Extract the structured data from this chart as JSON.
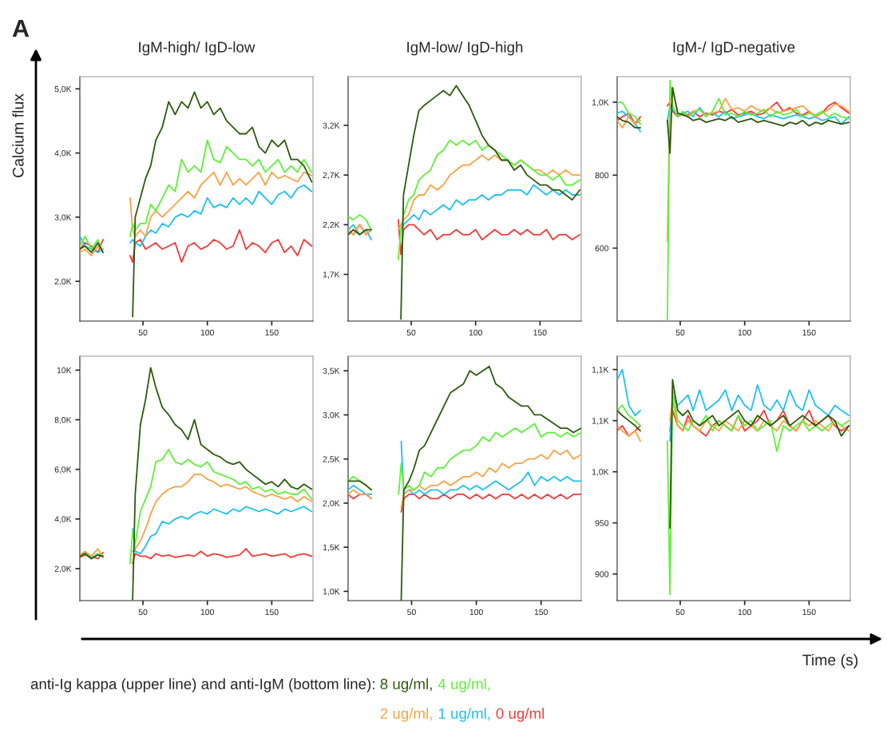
{
  "chart_data": [
    {
      "type": "line",
      "title": "IgM-high/ IgD-low",
      "ylabel": "Calcium flux",
      "legend": "bottom",
      "annotations": [
        "A",
        "anti-Ig kappa (upper line) and anti-IgM (bottom line):"
      ],
      "x": [
        1,
        5,
        10,
        15,
        19,
        30,
        40,
        42,
        44,
        48,
        52,
        56,
        60,
        65,
        70,
        75,
        80,
        85,
        90,
        95,
        100,
        105,
        110,
        115,
        120,
        125,
        130,
        135,
        140,
        145,
        150,
        155,
        160,
        165,
        170,
        175,
        181
      ],
      "xlim": [
        1,
        182
      ],
      "xticks": [
        50,
        100,
        150
      ],
      "ylim": [
        1380,
        5190
      ],
      "yticks": [
        {
          "value": 2000,
          "label": "2,0K"
        },
        {
          "value": 3000,
          "label": "3,0K"
        },
        {
          "value": 4000,
          "label": "4,0K"
        },
        {
          "value": 5000,
          "label": "5,0K"
        }
      ],
      "series": [
        {
          "name": "8 ug/ml,",
          "color": "#2d5a0c",
          "values": [
            2500,
            2550,
            2450,
            2600,
            2450,
            null,
            null,
            1450,
            3000,
            3300,
            3600,
            3800,
            4200,
            4400,
            4800,
            4600,
            4800,
            4700,
            4950,
            4700,
            4800,
            4600,
            4700,
            4500,
            4400,
            4300,
            4300,
            4400,
            4100,
            4000,
            4200,
            4100,
            4200,
            3900,
            3900,
            3800,
            3550
          ]
        },
        {
          "name": "4 ug/ml,",
          "color": "#5ef03a",
          "values": [
            2550,
            2700,
            2500,
            2650,
            2450,
            null,
            2700,
            2900,
            2800,
            2900,
            2900,
            3200,
            3100,
            3300,
            3500,
            3400,
            3900,
            3700,
            3800,
            3700,
            4200,
            3900,
            3850,
            4100,
            4000,
            3900,
            3900,
            3800,
            3900,
            3700,
            3800,
            3900,
            3700,
            3800,
            3700,
            3900,
            3700
          ]
        },
        {
          "name": "2 ug/ml,",
          "color": "#f8a345",
          "values": [
            2450,
            2500,
            2400,
            2550,
            2500,
            null,
            3300,
            2800,
            2700,
            2800,
            2700,
            3000,
            3100,
            3000,
            3100,
            3200,
            3300,
            3400,
            3300,
            3500,
            3600,
            3700,
            3500,
            3700,
            3500,
            3600,
            3500,
            3600,
            3700,
            3500,
            3700,
            3600,
            3650,
            3600,
            3550,
            3700,
            3650
          ]
        },
        {
          "name": "1 ug/ml,",
          "color": "#1ec0f2",
          "values": [
            2700,
            2550,
            2500,
            2450,
            2500,
            null,
            2600,
            2650,
            2600,
            2550,
            2700,
            2800,
            2750,
            2900,
            2850,
            3000,
            3050,
            3000,
            3100,
            3050,
            3300,
            3150,
            3200,
            3150,
            3300,
            3200,
            3300,
            3200,
            3400,
            3300,
            3200,
            3350,
            3400,
            3300,
            3450,
            3500,
            3400
          ]
        },
        {
          "name": "0 ug/ml",
          "color": "#f23a3a",
          "values": [
            2500,
            2600,
            2550,
            2450,
            2650,
            null,
            2400,
            2300,
            2600,
            2650,
            2500,
            2550,
            2600,
            2500,
            2550,
            2600,
            2300,
            2550,
            2600,
            2500,
            2550,
            2650,
            2600,
            2500,
            2550,
            2800,
            2500,
            2600,
            2550,
            2450,
            2600,
            2650,
            2450,
            2550,
            2400,
            2650,
            2550
          ]
        }
      ]
    },
    {
      "type": "line",
      "title": "IgM-low/ IgD-high",
      "x": [
        1,
        5,
        10,
        15,
        19,
        30,
        40,
        42,
        44,
        48,
        52,
        56,
        60,
        65,
        70,
        75,
        80,
        85,
        90,
        95,
        100,
        105,
        110,
        115,
        120,
        125,
        130,
        135,
        140,
        145,
        150,
        155,
        160,
        165,
        170,
        175,
        181
      ],
      "xlim": [
        1,
        182
      ],
      "xticks": [
        50,
        100,
        150
      ],
      "ylim": [
        1230,
        3690
      ],
      "yticks": [
        {
          "value": 1700,
          "label": "1,7K"
        },
        {
          "value": 2200,
          "label": "2,2K"
        },
        {
          "value": 2700,
          "label": "2,7K"
        },
        {
          "value": 3200,
          "label": "3,2K"
        }
      ],
      "series": [
        {
          "color": "#2d5a0c",
          "values": [
            2100,
            2150,
            2100,
            2150,
            2150,
            null,
            null,
            1250,
            2500,
            2800,
            3100,
            3350,
            3400,
            3450,
            3500,
            3550,
            3500,
            3600,
            3500,
            3400,
            3250,
            3100,
            3000,
            2950,
            2850,
            2850,
            2750,
            2800,
            2700,
            2650,
            2600,
            2600,
            2550,
            2550,
            2500,
            2450,
            2550
          ]
        },
        {
          "color": "#5ef03a",
          "values": [
            2280,
            2250,
            2300,
            2250,
            2150,
            null,
            1850,
            2150,
            2300,
            2450,
            2500,
            2650,
            2700,
            2750,
            2900,
            2950,
            3050,
            3000,
            3050,
            3000,
            3050,
            2950,
            3000,
            2950,
            2900,
            2850,
            2800,
            2850,
            2800,
            2750,
            2700,
            2700,
            2650,
            2700,
            2600,
            2600,
            2650
          ]
        },
        {
          "color": "#f8a345",
          "values": [
            2150,
            2100,
            2200,
            2100,
            2150,
            null,
            2150,
            2200,
            2250,
            2300,
            2450,
            2500,
            2500,
            2600,
            2550,
            2600,
            2700,
            2750,
            2800,
            2800,
            2850,
            2900,
            2850,
            2900,
            2850,
            2850,
            2800,
            2850,
            2800,
            2750,
            2750,
            2700,
            2750,
            2700,
            2750,
            2700,
            2700
          ]
        },
        {
          "color": "#1ec0f2",
          "values": [
            2150,
            2200,
            2100,
            2150,
            2050,
            null,
            2150,
            2150,
            2200,
            2250,
            2300,
            2250,
            2350,
            2300,
            2350,
            2400,
            2350,
            2450,
            2400,
            2450,
            2450,
            2500,
            2450,
            2500,
            2500,
            2550,
            2550,
            2550,
            2500,
            2600,
            2550,
            2500,
            2550,
            2500,
            2550,
            2500,
            2500
          ]
        },
        {
          "color": "#f23a3a",
          "values": [
            2150,
            2100,
            2200,
            2100,
            2150,
            null,
            2250,
            1900,
            2150,
            2200,
            2200,
            2150,
            2100,
            2150,
            2050,
            2100,
            2100,
            2150,
            2100,
            2100,
            2150,
            2050,
            2100,
            2150,
            2100,
            2100,
            2150,
            2100,
            2150,
            2100,
            2100,
            2150,
            2050,
            2100,
            2100,
            2050,
            2100
          ]
        }
      ]
    },
    {
      "type": "line",
      "title": "IgM-/ IgD-negative",
      "x": [
        1,
        5,
        10,
        15,
        19,
        30,
        40,
        42,
        44,
        48,
        52,
        56,
        60,
        65,
        70,
        75,
        80,
        85,
        90,
        95,
        100,
        105,
        110,
        115,
        120,
        125,
        130,
        135,
        140,
        145,
        150,
        155,
        160,
        165,
        170,
        175,
        181
      ],
      "xlim": [
        1,
        182
      ],
      "xticks": [
        50,
        100,
        150
      ],
      "ylim": [
        400,
        1070
      ],
      "yticks": [
        600,
        800,
        {
          "value": 1000,
          "label": "1,0K"
        }
      ],
      "series": [
        {
          "color": "#2d5a0c",
          "values": [
            960,
            950,
            945,
            930,
            930,
            null,
            950,
            860,
            1040,
            970,
            965,
            960,
            950,
            955,
            945,
            950,
            955,
            950,
            960,
            945,
            950,
            955,
            945,
            950,
            945,
            940,
            935,
            945,
            940,
            950,
            935,
            945,
            940,
            950,
            945,
            940,
            945
          ]
        },
        {
          "color": "#5ef03a",
          "values": [
            1000,
            1000,
            970,
            960,
            940,
            null,
            400,
            1060,
            990,
            960,
            975,
            960,
            970,
            980,
            960,
            975,
            1010,
            965,
            970,
            960,
            975,
            965,
            970,
            980,
            960,
            975,
            965,
            970,
            980,
            960,
            970,
            965,
            975,
            960,
            970,
            960,
            955
          ]
        },
        {
          "color": "#f8a345",
          "values": [
            950,
            930,
            960,
            940,
            950,
            null,
            620,
            1000,
            1040,
            970,
            965,
            960,
            975,
            980,
            965,
            970,
            975,
            1010,
            980,
            985,
            975,
            990,
            980,
            975,
            985,
            970,
            975,
            980,
            985,
            990,
            975,
            960,
            970,
            980,
            995,
            990,
            975
          ]
        },
        {
          "color": "#1ec0f2",
          "values": [
            970,
            975,
            960,
            940,
            920,
            null,
            950,
            990,
            980,
            965,
            970,
            975,
            960,
            985,
            965,
            970,
            960,
            975,
            955,
            960,
            965,
            970,
            960,
            955,
            965,
            960,
            955,
            960,
            965,
            960,
            955,
            960,
            950,
            955,
            960,
            940,
            960
          ]
        },
        {
          "color": "#f23a3a",
          "values": [
            950,
            960,
            970,
            940,
            960,
            null,
            990,
            1000,
            975,
            960,
            970,
            965,
            975,
            960,
            970,
            965,
            975,
            970,
            980,
            965,
            970,
            975,
            965,
            970,
            985,
            1000,
            975,
            985,
            970,
            965,
            975,
            960,
            970,
            990,
            1000,
            985,
            970
          ]
        }
      ]
    },
    {
      "type": "line",
      "x": [
        1,
        5,
        10,
        15,
        19,
        30,
        40,
        42,
        44,
        48,
        52,
        56,
        60,
        65,
        70,
        75,
        80,
        85,
        90,
        95,
        100,
        105,
        110,
        115,
        120,
        125,
        130,
        135,
        140,
        145,
        150,
        155,
        160,
        165,
        170,
        175,
        181
      ],
      "xlim": [
        1,
        182
      ],
      "xticks": [
        50,
        100,
        150
      ],
      "ylim": [
        710,
        10560
      ],
      "yticks": [
        {
          "value": 2000,
          "label": "2,0K"
        },
        {
          "value": 4000,
          "label": "4,0K"
        },
        {
          "value": 6000,
          "label": "6,0K"
        },
        {
          "value": 8000,
          "label": "8,0K"
        },
        {
          "value": 10000,
          "label": "10K"
        }
      ],
      "series": [
        {
          "color": "#2d5a0c",
          "values": [
            2500,
            2600,
            2400,
            2550,
            2500,
            null,
            null,
            750,
            5000,
            7800,
            8800,
            10100,
            9300,
            8500,
            8200,
            7800,
            7600,
            7200,
            8000,
            7000,
            6800,
            6600,
            6500,
            6300,
            6200,
            6300,
            6000,
            5800,
            5600,
            5400,
            5500,
            5300,
            5600,
            5300,
            5200,
            5400,
            5200
          ]
        },
        {
          "color": "#5ef03a",
          "values": [
            2500,
            2600,
            2400,
            2600,
            2500,
            null,
            2200,
            3500,
            3000,
            4300,
            4800,
            5300,
            6300,
            6400,
            6800,
            6300,
            6200,
            6400,
            6200,
            6100,
            6300,
            5900,
            5800,
            5700,
            5600,
            5400,
            5500,
            5200,
            5300,
            5100,
            5200,
            5000,
            5100,
            5000,
            5000,
            5200,
            4800
          ]
        },
        {
          "color": "#f8a345",
          "values": [
            2550,
            2700,
            2500,
            2800,
            2450,
            null,
            null,
            2700,
            2800,
            3100,
            3600,
            4200,
            4700,
            5000,
            5200,
            5300,
            5300,
            5500,
            5800,
            5800,
            5600,
            5500,
            5300,
            5400,
            5300,
            5200,
            5300,
            5100,
            5000,
            4900,
            5000,
            4900,
            4800,
            4900,
            4700,
            4900,
            4700
          ]
        },
        {
          "color": "#1ec0f2",
          "values": [
            2500,
            2650,
            2450,
            2600,
            2450,
            null,
            null,
            3600,
            2700,
            2600,
            2900,
            3300,
            3400,
            3900,
            3800,
            4000,
            4100,
            4000,
            4200,
            4300,
            4200,
            4400,
            4300,
            4200,
            4400,
            4300,
            4500,
            4400,
            4300,
            4400,
            4300,
            4200,
            4400,
            4300,
            4400,
            4500,
            4300
          ]
        },
        {
          "color": "#f23a3a",
          "values": [
            2450,
            2550,
            2500,
            2400,
            2650,
            null,
            null,
            2200,
            2600,
            2500,
            2500,
            2400,
            2600,
            2500,
            2550,
            2450,
            2500,
            2550,
            2500,
            2700,
            2500,
            2600,
            2550,
            2450,
            2500,
            2550,
            2800,
            2500,
            2550,
            2600,
            2500,
            2550,
            2600,
            2450,
            2550,
            2600,
            2500
          ]
        }
      ]
    },
    {
      "type": "line",
      "x": [
        1,
        5,
        10,
        15,
        19,
        30,
        40,
        42,
        44,
        48,
        52,
        56,
        60,
        65,
        70,
        75,
        80,
        85,
        90,
        95,
        100,
        105,
        110,
        115,
        120,
        125,
        130,
        135,
        140,
        145,
        150,
        155,
        160,
        165,
        170,
        175,
        181
      ],
      "xlim": [
        1,
        181
      ],
      "xticks": [
        50,
        100,
        150
      ],
      "ylim": [
        895,
        3665
      ],
      "yticks": [
        {
          "value": 1000,
          "label": "1,0K"
        },
        {
          "value": 1500,
          "label": "1,5K"
        },
        {
          "value": 2000,
          "label": "2,0K"
        },
        {
          "value": 2500,
          "label": "2,5K"
        },
        {
          "value": 3000,
          "label": "3,0K"
        },
        {
          "value": 3500,
          "label": "3,5K"
        }
      ],
      "series": [
        {
          "color": "#2d5a0c",
          "values": [
            2250,
            2250,
            2250,
            2200,
            2150,
            null,
            null,
            900,
            2150,
            2250,
            2400,
            2600,
            2650,
            2800,
            2950,
            3100,
            3250,
            3300,
            3350,
            3500,
            3450,
            3500,
            3550,
            3350,
            3300,
            3200,
            3150,
            3100,
            3100,
            3000,
            3000,
            2950,
            2900,
            2850,
            2850,
            2800,
            2850
          ]
        },
        {
          "color": "#5ef03a",
          "values": [
            2250,
            2300,
            2250,
            2200,
            2150,
            null,
            2100,
            2450,
            2150,
            2200,
            2150,
            2200,
            2350,
            2300,
            2400,
            2400,
            2500,
            2550,
            2600,
            2600,
            2650,
            2750,
            2700,
            2800,
            2750,
            2800,
            2850,
            2800,
            2850,
            2900,
            2750,
            2800,
            2800,
            2750,
            2800,
            2750,
            2800
          ]
        },
        {
          "color": "#f8a345",
          "values": [
            2100,
            2150,
            2100,
            2100,
            2050,
            null,
            null,
            1950,
            2100,
            2150,
            2150,
            2200,
            2150,
            2200,
            2200,
            2250,
            2200,
            2250,
            2300,
            2300,
            2350,
            2300,
            2400,
            2350,
            2450,
            2400,
            2450,
            2450,
            2500,
            2500,
            2550,
            2500,
            2600,
            2550,
            2600,
            2500,
            2550
          ]
        },
        {
          "color": "#1ec0f2",
          "values": [
            2150,
            2200,
            2150,
            2100,
            2100,
            null,
            null,
            2700,
            2100,
            2150,
            2100,
            2150,
            2100,
            2150,
            2150,
            2100,
            2150,
            2150,
            2200,
            2150,
            2200,
            2150,
            2200,
            2250,
            2200,
            2150,
            2200,
            2250,
            2350,
            2200,
            2300,
            2250,
            2300,
            2250,
            2300,
            2250,
            2250
          ]
        },
        {
          "color": "#f23a3a",
          "values": [
            2100,
            2050,
            2100,
            2100,
            2050,
            null,
            null,
            1900,
            2050,
            2100,
            2100,
            2050,
            2100,
            2050,
            2050,
            2100,
            2050,
            2100,
            2100,
            2050,
            2100,
            2050,
            2100,
            2050,
            2100,
            2100,
            2050,
            2100,
            2050,
            2100,
            2050,
            2100,
            2050,
            2100,
            2050,
            2100,
            2100
          ]
        }
      ]
    },
    {
      "type": "line",
      "xlabel": "Time (s)",
      "x": [
        1,
        5,
        10,
        15,
        19,
        30,
        40,
        42,
        44,
        48,
        52,
        56,
        60,
        65,
        70,
        75,
        80,
        85,
        90,
        95,
        100,
        105,
        110,
        115,
        120,
        125,
        130,
        135,
        140,
        145,
        150,
        155,
        160,
        165,
        170,
        175,
        181
      ],
      "xlim": [
        1,
        182
      ],
      "xticks": [
        50,
        100,
        150
      ],
      "ylim": [
        874,
        1113
      ],
      "yticks": [
        900,
        950,
        {
          "value": 1000,
          "label": "1,0K"
        },
        {
          "value": 1050,
          "label": "1,1K"
        },
        {
          "value": 1100,
          "label": "1,1K"
        }
      ],
      "series": [
        {
          "color": "#2d5a0c",
          "values": [
            1060,
            1055,
            1050,
            1045,
            1040,
            null,
            null,
            945,
            1090,
            1060,
            1055,
            1060,
            1050,
            1045,
            1050,
            1055,
            1045,
            1050,
            1055,
            1060,
            1050,
            1045,
            1055,
            1050,
            1045,
            1050,
            1055,
            1045,
            1050,
            1055,
            1050,
            1045,
            1050,
            1055,
            1050,
            1035,
            1045
          ]
        },
        {
          "color": "#5ef03a",
          "values": [
            1060,
            1065,
            1055,
            1050,
            1045,
            null,
            1030,
            880,
            1080,
            1050,
            1045,
            1040,
            1050,
            1045,
            1055,
            1040,
            1050,
            1045,
            1040,
            1055,
            1045,
            1050,
            1040,
            1045,
            1050,
            1020,
            1045,
            1040,
            1045,
            1050,
            1040,
            1045,
            1040,
            1045,
            1050,
            1045,
            1050
          ]
        },
        {
          "color": "#f8a345",
          "values": [
            1045,
            1040,
            1035,
            1040,
            1030,
            null,
            null,
            1050,
            1070,
            1045,
            1040,
            1050,
            1045,
            1040,
            1050,
            1045,
            1040,
            1050,
            1045,
            1040,
            1050,
            1045,
            1040,
            1050,
            1045,
            1040,
            1050,
            1045,
            1040,
            1050,
            1045,
            1050,
            1045,
            1040,
            1050,
            1045,
            1040
          ]
        },
        {
          "color": "#1ec0f2",
          "values": [
            1090,
            1100,
            1065,
            1055,
            1060,
            null,
            null,
            1030,
            1075,
            1065,
            1070,
            1075,
            1060,
            1080,
            1060,
            1065,
            1070,
            1080,
            1060,
            1075,
            1065,
            1060,
            1085,
            1065,
            1060,
            1070,
            1060,
            1080,
            1065,
            1060,
            1080,
            1065,
            1060,
            1055,
            1065,
            1060,
            1055
          ]
        },
        {
          "color": "#f23a3a",
          "values": [
            1040,
            1045,
            1035,
            1040,
            1045,
            null,
            null,
            1040,
            1060,
            1045,
            1040,
            1055,
            1045,
            1040,
            1035,
            1045,
            1050,
            1045,
            1040,
            1055,
            1040,
            1045,
            1050,
            1060,
            1045,
            1050,
            1060,
            1045,
            1040,
            1050,
            1060,
            1045,
            1050,
            1055,
            1045,
            1040,
            1045
          ]
        }
      ]
    }
  ]
}
